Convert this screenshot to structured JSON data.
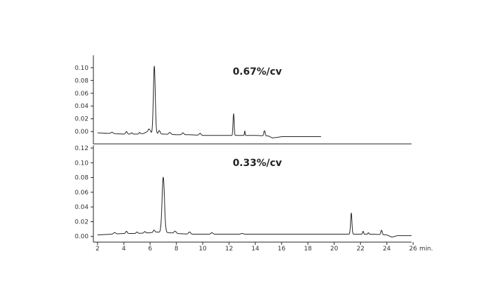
{
  "chart_data": {
    "type": "line",
    "shared_x_axis": {
      "ticks": [
        "2",
        "4",
        "6",
        "8",
        "10",
        "12",
        "14",
        "16",
        "18",
        "20",
        "22",
        "24",
        "26"
      ],
      "unit": "min.",
      "xlim": [
        2,
        26.2
      ]
    },
    "panels": [
      {
        "label": "0.67%/cv",
        "y_ticks": [
          "0.00",
          "0.02",
          "0.04",
          "0.06",
          "0.08",
          "0.10"
        ],
        "ylim": [
          -0.015,
          0.115
        ],
        "x_range": [
          2,
          19
        ],
        "baseline": [
          [
            2,
            -0.002
          ],
          [
            3,
            -0.003
          ],
          [
            4,
            -0.004
          ],
          [
            5,
            -0.004
          ],
          [
            5.5,
            -0.003
          ],
          [
            5.8,
            0.0
          ],
          [
            6.0,
            0.002
          ],
          [
            6.1,
            -0.002
          ],
          [
            6.5,
            -0.003
          ],
          [
            7,
            -0.004
          ],
          [
            8,
            -0.005
          ],
          [
            9,
            -0.005
          ],
          [
            10,
            -0.006
          ],
          [
            11,
            -0.006
          ],
          [
            12,
            -0.006
          ],
          [
            13,
            -0.006
          ],
          [
            14,
            -0.006
          ],
          [
            15,
            -0.007
          ],
          [
            15.3,
            -0.01
          ],
          [
            15.7,
            -0.009
          ],
          [
            16,
            -0.008
          ],
          [
            17,
            -0.008
          ],
          [
            18,
            -0.008
          ],
          [
            19,
            -0.008
          ]
        ],
        "peaks": [
          {
            "x": 3.1,
            "height": 0.002,
            "width": 0.08
          },
          {
            "x": 4.2,
            "height": 0.004,
            "width": 0.06
          },
          {
            "x": 4.6,
            "height": 0.002,
            "width": 0.06
          },
          {
            "x": 5.2,
            "height": 0.002,
            "width": 0.05
          },
          {
            "x": 5.9,
            "height": 0.003,
            "width": 0.05
          },
          {
            "x": 6.32,
            "height": 0.105,
            "width": 0.07
          },
          {
            "x": 6.7,
            "height": 0.005,
            "width": 0.06
          },
          {
            "x": 7.5,
            "height": 0.003,
            "width": 0.08
          },
          {
            "x": 8.5,
            "height": 0.003,
            "width": 0.07
          },
          {
            "x": 9.8,
            "height": 0.003,
            "width": 0.07
          },
          {
            "x": 12.35,
            "height": 0.034,
            "width": 0.04
          },
          {
            "x": 13.2,
            "height": 0.007,
            "width": 0.025
          },
          {
            "x": 14.7,
            "height": 0.008,
            "width": 0.05
          }
        ]
      },
      {
        "label": "0.33%/cv",
        "y_ticks": [
          "0.00",
          "0.02",
          "0.04",
          "0.06",
          "0.08",
          "0.10",
          "0.12"
        ],
        "ylim": [
          -0.004,
          0.12
        ],
        "x_range": [
          2,
          26.2
        ],
        "baseline": [
          [
            2,
            0.002
          ],
          [
            3,
            0.003
          ],
          [
            4,
            0.004
          ],
          [
            5,
            0.004
          ],
          [
            6,
            0.005
          ],
          [
            6.5,
            0.006
          ],
          [
            7.5,
            0.005
          ],
          [
            8,
            0.004
          ],
          [
            9,
            0.003
          ],
          [
            10,
            0.003
          ],
          [
            12,
            0.003
          ],
          [
            14,
            0.003
          ],
          [
            16,
            0.003
          ],
          [
            18,
            0.003
          ],
          [
            20,
            0.003
          ],
          [
            21,
            0.003
          ],
          [
            22,
            0.003
          ],
          [
            23,
            0.003
          ],
          [
            24,
            0.002
          ],
          [
            24.4,
            -0.001
          ],
          [
            24.8,
            0.001
          ],
          [
            25.5,
            0.001
          ],
          [
            26.2,
            0.001
          ]
        ],
        "peaks": [
          {
            "x": 3.3,
            "height": 0.002,
            "width": 0.08
          },
          {
            "x": 4.2,
            "height": 0.003,
            "width": 0.06
          },
          {
            "x": 5.0,
            "height": 0.002,
            "width": 0.06
          },
          {
            "x": 5.6,
            "height": 0.002,
            "width": 0.06
          },
          {
            "x": 6.3,
            "height": 0.003,
            "width": 0.06
          },
          {
            "x": 7.0,
            "height": 0.075,
            "width": 0.09
          },
          {
            "x": 7.9,
            "height": 0.003,
            "width": 0.08
          },
          {
            "x": 9.0,
            "height": 0.003,
            "width": 0.08
          },
          {
            "x": 10.7,
            "height": 0.002,
            "width": 0.08
          },
          {
            "x": 13.0,
            "height": 0.001,
            "width": 0.1
          },
          {
            "x": 21.3,
            "height": 0.029,
            "width": 0.05
          },
          {
            "x": 22.2,
            "height": 0.004,
            "width": 0.04
          },
          {
            "x": 22.6,
            "height": 0.002,
            "width": 0.04
          },
          {
            "x": 23.6,
            "height": 0.006,
            "width": 0.05
          }
        ]
      }
    ]
  }
}
